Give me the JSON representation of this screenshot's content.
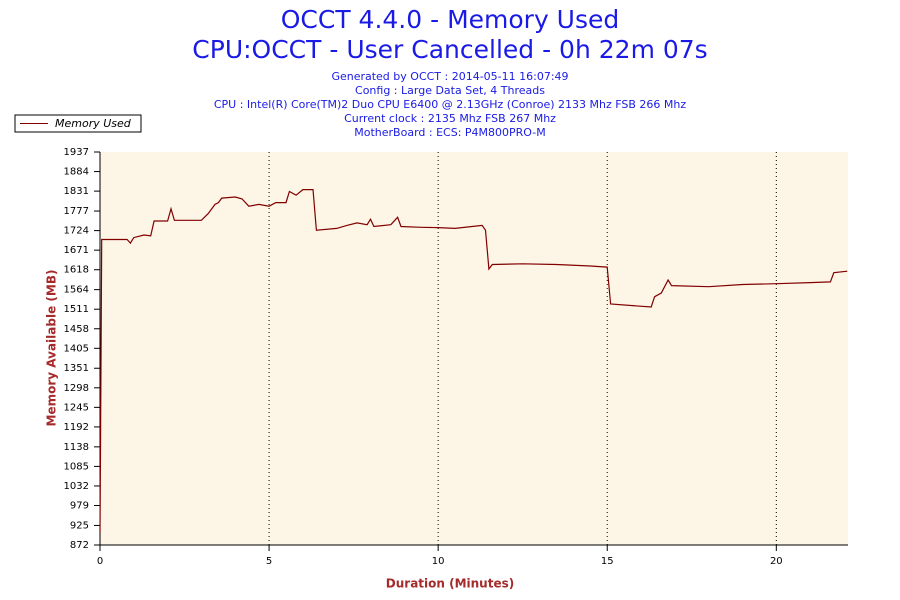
{
  "chart_data": {
    "type": "line",
    "title": [
      "OCCT 4.4.0 - Memory Used",
      "CPU:OCCT - User Cancelled - 0h 22m 07s"
    ],
    "subtitle": [
      "Generated by OCCT : 2014-05-11 16:07:49",
      "Config : Large Data Set, 4 Threads",
      "CPU : Intel(R) Core(TM)2 Duo CPU E6400 @ 2.13GHz (Conroe) 2133 Mhz FSB 266 Mhz",
      "Current clock : 2135 Mhz FSB 267 Mhz",
      "MotherBoard : ECS: P4M800PRO-M"
    ],
    "x_label": "Duration (Minutes)",
    "y_label": "Memory Available (MB)",
    "x": [
      0,
      0.05,
      0.8,
      0.9,
      1.0,
      1.3,
      1.5,
      1.6,
      2.0,
      2.1,
      2.2,
      3.0,
      3.2,
      3.4,
      3.5,
      3.6,
      4.0,
      4.2,
      4.4,
      4.7,
      5.0,
      5.2,
      5.5,
      5.6,
      5.8,
      6.0,
      6.3,
      6.4,
      7.0,
      7.3,
      7.6,
      7.9,
      8.0,
      8.1,
      8.6,
      8.8,
      8.9,
      9.5,
      10.0,
      10.5,
      11.0,
      11.3,
      11.4,
      11.5,
      11.6,
      12.5,
      13.5,
      14.5,
      15.0,
      15.1,
      16.3,
      16.4,
      16.6,
      16.8,
      16.9,
      18.0,
      19.0,
      20.0,
      21.0,
      21.6,
      21.7,
      22.1
    ],
    "series": [
      {
        "name": "Memory Used",
        "color": "#800000",
        "values": [
          905,
          1700,
          1700,
          1690,
          1705,
          1712,
          1710,
          1750,
          1750,
          1783,
          1752,
          1752,
          1770,
          1795,
          1800,
          1812,
          1815,
          1810,
          1790,
          1795,
          1790,
          1800,
          1800,
          1830,
          1820,
          1835,
          1835,
          1725,
          1730,
          1738,
          1745,
          1740,
          1755,
          1735,
          1740,
          1760,
          1735,
          1733,
          1732,
          1730,
          1735,
          1738,
          1725,
          1620,
          1632,
          1634,
          1632,
          1628,
          1625,
          1525,
          1517,
          1545,
          1555,
          1590,
          1575,
          1572,
          1578,
          1580,
          1583,
          1585,
          1610,
          1614
        ]
      }
    ],
    "xlim": [
      0,
      22.12
    ],
    "xticks": [
      0,
      5,
      10,
      15,
      20
    ],
    "xgrid": true,
    "ylim": [
      872,
      1937
    ],
    "yticks": [
      872,
      925,
      979,
      1032,
      1085,
      1138,
      1192,
      1245,
      1298,
      1351,
      1405,
      1458,
      1511,
      1564,
      1618,
      1671,
      1724,
      1777,
      1831,
      1884,
      1937
    ],
    "legend": "top-left",
    "plot_bg": "#fdf5e6"
  }
}
